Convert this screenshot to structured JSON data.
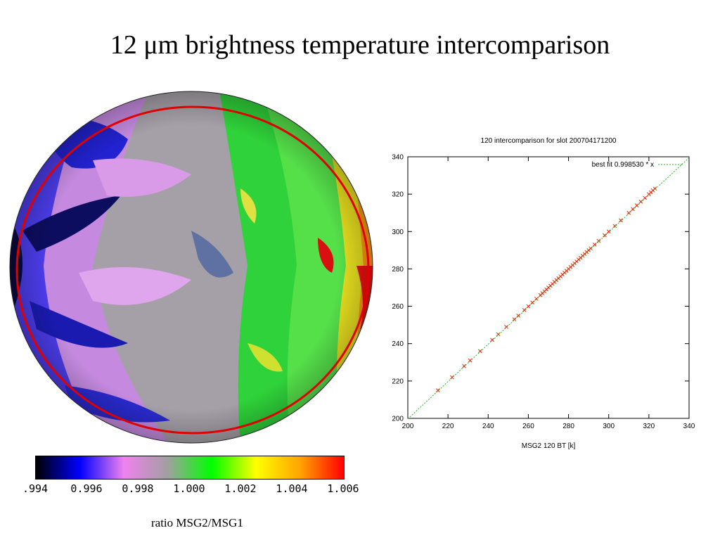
{
  "slide": {
    "title": "12 μm brightness temperature intercomparison"
  },
  "colorbar": {
    "ticks": [
      ".994",
      "0.996",
      "0.998",
      "1.000",
      "1.002",
      "1.004",
      "1.006"
    ],
    "caption": "ratio MSG2/MSG1",
    "colors": [
      "#000000",
      "#0000ff",
      "#ee82ee",
      "#a0a0a0",
      "#00ff00",
      "#ffff00",
      "#ffa500",
      "#ff0000"
    ]
  },
  "earth_disk": {
    "overlay_color": "#e00000"
  },
  "chart_data": {
    "type": "scatter",
    "title": "120 intercomparison for slot 200704171200",
    "xlabel": "MSG2 120 BT [k]",
    "ylabel": "",
    "xlim": [
      200,
      340
    ],
    "ylim": [
      200,
      340
    ],
    "xticks": [
      200,
      220,
      240,
      260,
      280,
      300,
      320,
      340
    ],
    "yticks": [
      200,
      220,
      240,
      260,
      280,
      300,
      320,
      340
    ],
    "legend": {
      "label": "best fit 0.998530 * x",
      "placement": "top-right"
    },
    "fit_slope": 0.99853,
    "colors": {
      "points": "#e03010",
      "fit": "#22bb22"
    },
    "points": [
      [
        215,
        215
      ],
      [
        222,
        222
      ],
      [
        228,
        228
      ],
      [
        231,
        231
      ],
      [
        236,
        236
      ],
      [
        242,
        242
      ],
      [
        245,
        245
      ],
      [
        249,
        249
      ],
      [
        253,
        253
      ],
      [
        255,
        255
      ],
      [
        258,
        258
      ],
      [
        260,
        260
      ],
      [
        262,
        262
      ],
      [
        264,
        264
      ],
      [
        266,
        266
      ],
      [
        267,
        267
      ],
      [
        268,
        268
      ],
      [
        269,
        269
      ],
      [
        270,
        270
      ],
      [
        271,
        271
      ],
      [
        272,
        272
      ],
      [
        273,
        273
      ],
      [
        274,
        274
      ],
      [
        275,
        275
      ],
      [
        276,
        276
      ],
      [
        277,
        277
      ],
      [
        278,
        278
      ],
      [
        279,
        279
      ],
      [
        280,
        280
      ],
      [
        281,
        281
      ],
      [
        282,
        282
      ],
      [
        283,
        283
      ],
      [
        284,
        284
      ],
      [
        285,
        285
      ],
      [
        286,
        286
      ],
      [
        287,
        287
      ],
      [
        288,
        288
      ],
      [
        289,
        289
      ],
      [
        290,
        290
      ],
      [
        291,
        291
      ],
      [
        293,
        293
      ],
      [
        295,
        295
      ],
      [
        298,
        298
      ],
      [
        300,
        300
      ],
      [
        303,
        303
      ],
      [
        306,
        306
      ],
      [
        310,
        310
      ],
      [
        312,
        312
      ],
      [
        314,
        314
      ],
      [
        316,
        316
      ],
      [
        318,
        318
      ],
      [
        320,
        320
      ],
      [
        321,
        321
      ],
      [
        322,
        322
      ],
      [
        323,
        323
      ]
    ]
  }
}
